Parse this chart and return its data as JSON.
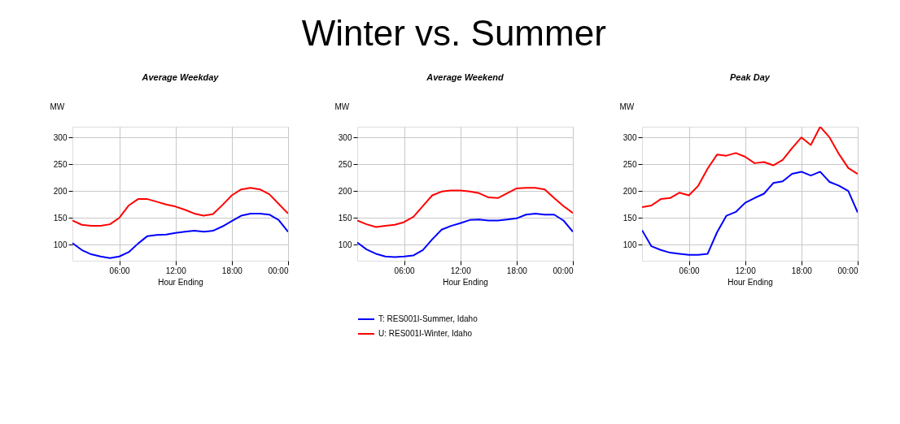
{
  "chart_data": [
    {
      "type": "line",
      "title": "Average Weekday",
      "xlabel": "Hour Ending",
      "ylabel": "MW",
      "annotations": [
        "Winter vs. Summer"
      ],
      "x": [
        1,
        2,
        3,
        4,
        5,
        6,
        7,
        8,
        9,
        10,
        11,
        12,
        13,
        14,
        15,
        16,
        17,
        18,
        19,
        20,
        21,
        22,
        23,
        24
      ],
      "xlim": [
        1,
        24
      ],
      "xticks": [
        {
          "value": 6,
          "label": "06:00"
        },
        {
          "value": 12,
          "label": "12:00"
        },
        {
          "value": 18,
          "label": "18:00"
        },
        {
          "value": 24,
          "label": "00:00"
        }
      ],
      "ylim": [
        70,
        320
      ],
      "yticks": [
        100,
        150,
        200,
        250,
        300
      ],
      "grid": true,
      "line_style": "solid",
      "marker": "none",
      "series": [
        {
          "color": "#0000ff",
          "values": [
            103,
            90,
            82,
            78,
            75,
            78,
            86,
            102,
            116,
            118,
            119,
            122,
            124,
            126,
            124,
            126,
            134,
            144,
            154,
            158,
            158,
            156,
            146,
            124
          ]
        },
        {
          "color": "#ff0000",
          "values": [
            145,
            137,
            135,
            135,
            138,
            150,
            173,
            185,
            185,
            180,
            175,
            171,
            165,
            158,
            154,
            157,
            174,
            192,
            203,
            206,
            203,
            194,
            176,
            158
          ]
        }
      ]
    },
    {
      "type": "line",
      "title": "Average Weekend",
      "xlabel": "Hour Ending",
      "ylabel": "MW",
      "legend": "bottom",
      "x": [
        1,
        2,
        3,
        4,
        5,
        6,
        7,
        8,
        9,
        10,
        11,
        12,
        13,
        14,
        15,
        16,
        17,
        18,
        19,
        20,
        21,
        22,
        23,
        24
      ],
      "xlim": [
        1,
        24
      ],
      "xticks": [
        {
          "value": 6,
          "label": "06:00"
        },
        {
          "value": 12,
          "label": "12:00"
        },
        {
          "value": 18,
          "label": "18:00"
        },
        {
          "value": 24,
          "label": "00:00"
        }
      ],
      "ylim": [
        70,
        320
      ],
      "yticks": [
        100,
        150,
        200,
        250,
        300
      ],
      "grid": true,
      "line_style": "solid",
      "marker": "none",
      "series": [
        {
          "name": "T: RES001I-Summer, Idaho",
          "color": "#0000ff",
          "values": [
            104,
            91,
            83,
            78,
            77,
            78,
            80,
            90,
            110,
            128,
            135,
            140,
            146,
            147,
            145,
            145,
            147,
            149,
            156,
            158,
            156,
            156,
            145,
            124
          ]
        },
        {
          "name": "U: RES001I-Winter, Idaho",
          "color": "#ff0000",
          "values": [
            145,
            138,
            133,
            135,
            137,
            142,
            152,
            172,
            192,
            199,
            201,
            201,
            199,
            196,
            188,
            187,
            196,
            205,
            206,
            206,
            203,
            187,
            172,
            159
          ]
        }
      ]
    },
    {
      "type": "line",
      "title": "Peak Day",
      "xlabel": "Hour Ending",
      "ylabel": "MW",
      "x": [
        1,
        2,
        3,
        4,
        5,
        6,
        7,
        8,
        9,
        10,
        11,
        12,
        13,
        14,
        15,
        16,
        17,
        18,
        19,
        20,
        21,
        22,
        23,
        24
      ],
      "xlim": [
        1,
        24
      ],
      "xticks": [
        {
          "value": 6,
          "label": "06:00"
        },
        {
          "value": 12,
          "label": "12:00"
        },
        {
          "value": 18,
          "label": "18:00"
        },
        {
          "value": 24,
          "label": "00:00"
        }
      ],
      "ylim": [
        70,
        320
      ],
      "yticks": [
        100,
        150,
        200,
        250,
        300
      ],
      "grid": true,
      "line_style": "solid",
      "marker": "none",
      "series": [
        {
          "color": "#0000ff",
          "values": [
            127,
            97,
            90,
            85,
            83,
            81,
            81,
            83,
            123,
            154,
            161,
            178,
            187,
            195,
            215,
            218,
            232,
            236,
            229,
            236,
            217,
            210,
            200,
            160
          ]
        },
        {
          "color": "#ff0000",
          "values": [
            170,
            173,
            185,
            187,
            197,
            192,
            210,
            242,
            268,
            266,
            271,
            264,
            252,
            254,
            248,
            258,
            280,
            300,
            286,
            320,
            300,
            269,
            243,
            232
          ]
        }
      ]
    }
  ]
}
